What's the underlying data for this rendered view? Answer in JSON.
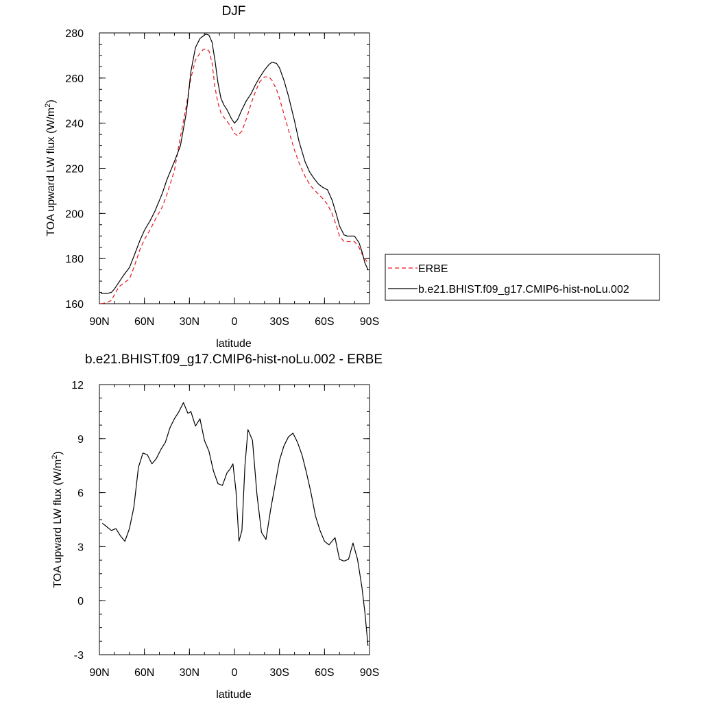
{
  "chart_data": [
    {
      "type": "line",
      "title": "DJF",
      "xlabel": "latitude",
      "ylabel": "TOA upward LW flux (W/m",
      "ylabel_sup": "2",
      "ylabel_close": ")",
      "xlim": [
        90,
        -90
      ],
      "ylim": [
        160,
        280
      ],
      "x_ticks": [
        90,
        60,
        30,
        0,
        -30,
        -60,
        -90
      ],
      "x_tick_labels": [
        "90N",
        "60N",
        "30N",
        "0",
        "30S",
        "60S",
        "90S"
      ],
      "y_ticks": [
        160,
        180,
        200,
        220,
        240,
        260,
        280
      ],
      "y_tick_labels": [
        "160",
        "180",
        "200",
        "220",
        "240",
        "260",
        "280"
      ],
      "legend_position": "right",
      "series": [
        {
          "name": "ERBE",
          "color": "#e8141b",
          "dash": "dashed",
          "x": [
            89,
            85,
            82,
            80,
            77,
            74,
            70,
            67,
            63,
            60,
            56,
            53,
            48,
            45,
            40,
            36,
            32,
            29,
            26,
            23,
            21,
            19,
            17,
            15,
            13,
            11,
            9,
            7,
            5,
            2,
            0,
            -2,
            -5,
            -8,
            -11,
            -14,
            -17,
            -20,
            -23,
            -25,
            -28,
            -30,
            -33,
            -36,
            -40,
            -43,
            -47,
            -50,
            -53,
            -56,
            -59,
            -62,
            -65,
            -68,
            -70,
            -73,
            -75,
            -77,
            -80,
            -83,
            -85,
            -87,
            -89
          ],
          "y": [
            160,
            160.5,
            161.5,
            164,
            167.5,
            169,
            171,
            176,
            184,
            188.5,
            193,
            197,
            203,
            208.5,
            219,
            234,
            248,
            260,
            268,
            271,
            272.5,
            273,
            272,
            267,
            256,
            249,
            244.5,
            242.5,
            241,
            238,
            235.5,
            234.5,
            236.5,
            242,
            248.5,
            254,
            258.5,
            260.5,
            260.5,
            259,
            255,
            251,
            244,
            237,
            228,
            222.5,
            216.5,
            213,
            210.5,
            208.5,
            206.5,
            204,
            200,
            194.5,
            190,
            187.5,
            187.5,
            187.5,
            187.5,
            185,
            182,
            180,
            178
          ]
        },
        {
          "name": "b.e21.BHIST.f09_g17.CMIP6-hist-noLu.002",
          "color": "#000000",
          "dash": "solid",
          "x": [
            89,
            85,
            82,
            80,
            77,
            74,
            70,
            67,
            63,
            60,
            56,
            53,
            48,
            45,
            40,
            36,
            32,
            29,
            26,
            23,
            21,
            19,
            17,
            15,
            13,
            11,
            9,
            7,
            5,
            2,
            0,
            -2,
            -5,
            -8,
            -11,
            -14,
            -17,
            -20,
            -23,
            -25,
            -28,
            -30,
            -33,
            -36,
            -40,
            -43,
            -47,
            -50,
            -53,
            -56,
            -59,
            -62,
            -65,
            -68,
            -70,
            -73,
            -75,
            -77,
            -80,
            -83,
            -85,
            -87,
            -89
          ],
          "y": [
            164.5,
            164.5,
            165,
            166.5,
            169.5,
            172.5,
            176,
            181,
            188,
            192.5,
            197,
            201,
            209,
            215,
            223,
            230,
            245,
            263,
            273.5,
            277.5,
            278.5,
            279.5,
            279,
            276,
            268,
            258,
            251,
            248,
            246,
            242,
            240,
            241.5,
            246,
            250,
            253,
            257,
            260.5,
            263.5,
            266,
            267,
            266.5,
            264.5,
            259,
            252,
            241,
            232,
            223,
            218.5,
            215.5,
            213,
            211.5,
            210.5,
            206,
            199.5,
            194.5,
            190.5,
            190,
            190,
            190,
            187,
            183,
            178,
            175
          ]
        }
      ]
    },
    {
      "type": "line",
      "title": "b.e21.BHIST.f09_g17.CMIP6-hist-noLu.002 - ERBE",
      "xlabel": "latitude",
      "ylabel": "TOA upward LW flux (W/m",
      "ylabel_sup": "2",
      "ylabel_close": ")",
      "xlim": [
        90,
        -90
      ],
      "ylim": [
        -3,
        12
      ],
      "x_ticks": [
        90,
        60,
        30,
        0,
        -30,
        -60,
        -90
      ],
      "x_tick_labels": [
        "90N",
        "60N",
        "30N",
        "0",
        "30S",
        "60S",
        "90S"
      ],
      "y_ticks": [
        -3,
        0,
        3,
        6,
        9,
        12
      ],
      "y_tick_labels": [
        "-3",
        "0",
        "3",
        "6",
        "9",
        "12"
      ],
      "series": [
        {
          "color": "#000000",
          "dash": "solid",
          "x": [
            88,
            85,
            82,
            79,
            76,
            73,
            70,
            67,
            64,
            61,
            58,
            55,
            52,
            49,
            46,
            43,
            40,
            37,
            34,
            31,
            29,
            26,
            23,
            20,
            17,
            14,
            11,
            8,
            5,
            3,
            1,
            -1,
            -3,
            -5,
            -7,
            -9,
            -12,
            -15,
            -18,
            -21,
            -24,
            -27,
            -30,
            -33,
            -36,
            -39,
            -42,
            -45,
            -48,
            -51,
            -54,
            -57,
            -60,
            -63,
            -65,
            -67,
            -70,
            -73,
            -76,
            -79,
            -82,
            -85,
            -87,
            -89
          ],
          "y": [
            4.3,
            4.1,
            3.9,
            4.0,
            3.6,
            3.3,
            4.0,
            5.2,
            7.4,
            8.2,
            8.1,
            7.6,
            7.9,
            8.4,
            8.8,
            9.6,
            10.1,
            10.5,
            11.0,
            10.4,
            10.5,
            9.7,
            10.1,
            8.9,
            8.3,
            7.2,
            6.5,
            6.4,
            7.1,
            7.3,
            7.6,
            6.1,
            3.3,
            3.9,
            7.5,
            9.5,
            8.9,
            5.9,
            3.8,
            3.4,
            5.0,
            6.4,
            7.8,
            8.6,
            9.1,
            9.3,
            8.8,
            8.1,
            7.1,
            6.0,
            4.7,
            3.9,
            3.3,
            3.1,
            3.3,
            3.5,
            2.3,
            2.2,
            2.3,
            3.2,
            2.3,
            0.7,
            -0.7,
            -2.5
          ]
        }
      ]
    }
  ]
}
